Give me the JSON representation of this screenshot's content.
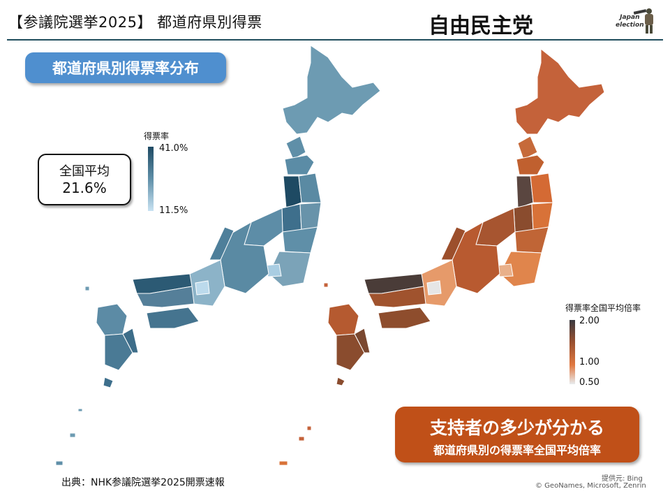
{
  "header": {
    "title": "【参議院選挙2025】 都道府県別得票",
    "party": "自由民主党",
    "logo_text": "Japan\nelection"
  },
  "left_map": {
    "banner": "都道府県別得票率分布",
    "legend_title": "得票率",
    "legend_max": "41.0%",
    "legend_min": "11.5%",
    "avg_label": "全国平均",
    "avg_value": "21.6%",
    "colors": {
      "high": "#1e4a63",
      "base": "#5f8fa8",
      "low": "#c8e2f2"
    }
  },
  "right_map": {
    "legend_title": "得票率全国平均倍率",
    "legend_max": "2.00",
    "legend_mid": "1.00",
    "legend_min": "0.50",
    "banner_main": "支持者の多少が分かる",
    "banner_sub": "都道府県別の得票率全国平均倍率",
    "colors": {
      "high": "#4a3c38",
      "base": "#b8562a",
      "mid": "#e07840",
      "low": "#e6e6e6"
    }
  },
  "footer": {
    "source": "出典：NHK参議院選挙2025開票速報",
    "credit_provider": "提供元: Bing",
    "credit_data": "© GeoNames, Microsoft, Zenrin"
  }
}
